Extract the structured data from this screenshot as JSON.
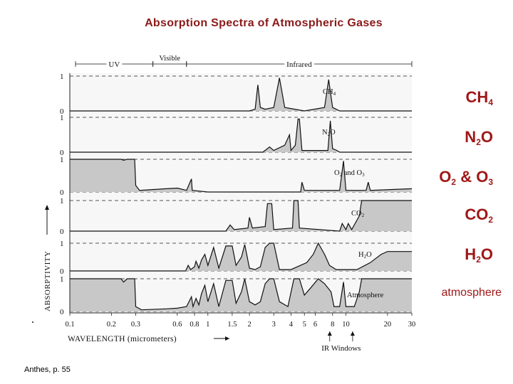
{
  "slide": {
    "title": "Absorption Spectra of Atmospheric Gases",
    "credit": "Anthes, p. 55"
  },
  "legend_labels": [
    {
      "base": "CH",
      "sub": "4",
      "tail": ""
    },
    {
      "base": "N",
      "sub": "2",
      "tail": "O"
    },
    {
      "base": "O",
      "sub": "2",
      "tail": " & O",
      "sub2": "3"
    },
    {
      "base": "CO",
      "sub": "2",
      "tail": ""
    },
    {
      "base": "H",
      "sub": "2",
      "tail": "O"
    },
    {
      "base": "atmosphere",
      "sub": "",
      "tail": ""
    }
  ],
  "colors": {
    "title": "#8b1a1a",
    "labels": "#a01818",
    "fill": "#c8c8c8",
    "line": "#111111"
  },
  "chart_data": {
    "type": "area",
    "xscale": "log",
    "xlabel": "WAVELENGTH (micrometers)",
    "ylabel": "ABSORPTIVITY",
    "xlim": [
      0.1,
      30
    ],
    "xticks": [
      "0.1",
      "0.2",
      "0.3",
      "0.6",
      "0.8",
      "1",
      "1.5",
      "2",
      "3",
      "4",
      "5",
      "6",
      "8",
      "10",
      "20",
      "30"
    ],
    "xtick_values": [
      0.1,
      0.2,
      0.3,
      0.6,
      0.8,
      1,
      1.5,
      2,
      3,
      4,
      5,
      6,
      8,
      10,
      20,
      30
    ],
    "regions": [
      {
        "label": "UV",
        "from": 0.1,
        "to": 0.4
      },
      {
        "label": "Visible",
        "from": 0.4,
        "to": 0.7
      },
      {
        "label": "Infrared",
        "from": 0.7,
        "to": 30
      }
    ],
    "annotation": "IR Windows",
    "ir_window_range": [
      8,
      12
    ],
    "panels": [
      {
        "name": "CH4",
        "label": "CH",
        "label_sub": "4",
        "ymin_label": "0",
        "ymax_label": "1",
        "points": [
          [
            0.1,
            0
          ],
          [
            2.0,
            0
          ],
          [
            2.2,
            0.05
          ],
          [
            2.3,
            0.75
          ],
          [
            2.4,
            0.1
          ],
          [
            2.6,
            0.05
          ],
          [
            3.0,
            0.1
          ],
          [
            3.3,
            0.95
          ],
          [
            3.6,
            0.1
          ],
          [
            5,
            0
          ],
          [
            7.0,
            0.1
          ],
          [
            7.5,
            0.9
          ],
          [
            8.0,
            0.1
          ],
          [
            9,
            0
          ],
          [
            30,
            0
          ]
        ]
      },
      {
        "name": "N2O",
        "label": "N",
        "label_sub": "2",
        "label_tail": "O",
        "ymin_label": "0",
        "ymax_label": "1",
        "points": [
          [
            0.1,
            0
          ],
          [
            2.5,
            0
          ],
          [
            2.8,
            0.15
          ],
          [
            3.0,
            0.05
          ],
          [
            3.6,
            0.2
          ],
          [
            3.9,
            0.5
          ],
          [
            4.0,
            0.05
          ],
          [
            4.3,
            0.2
          ],
          [
            4.5,
            0.95
          ],
          [
            4.6,
            0.95
          ],
          [
            4.8,
            0.05
          ],
          [
            7.4,
            0.05
          ],
          [
            7.7,
            0.9
          ],
          [
            8.0,
            0.1
          ],
          [
            8.6,
            0.05
          ],
          [
            9,
            0
          ],
          [
            30,
            0
          ]
        ]
      },
      {
        "name": "O2 and O3",
        "label": "O",
        "label_sub": "2",
        "label_tail": " and O",
        "label_sub2": "3",
        "ymin_label": "0",
        "ymax_label": "1",
        "points": [
          [
            0.1,
            1
          ],
          [
            0.235,
            1
          ],
          [
            0.245,
            0.97
          ],
          [
            0.26,
            1
          ],
          [
            0.295,
            1
          ],
          [
            0.3,
            0.2
          ],
          [
            0.32,
            0.05
          ],
          [
            0.5,
            0.1
          ],
          [
            0.6,
            0.12
          ],
          [
            0.7,
            0.05
          ],
          [
            0.76,
            0.4
          ],
          [
            0.77,
            0.05
          ],
          [
            1,
            0
          ],
          [
            4.7,
            0
          ],
          [
            4.8,
            0.3
          ],
          [
            5,
            0.05
          ],
          [
            9.0,
            0.05
          ],
          [
            9.6,
            0.95
          ],
          [
            10,
            0.05
          ],
          [
            14,
            0.05
          ],
          [
            14.5,
            0.3
          ],
          [
            15,
            0.05
          ],
          [
            30,
            0.1
          ]
        ]
      },
      {
        "name": "CO2",
        "label": "CO",
        "label_sub": "2",
        "ymin_label": "0",
        "ymax_label": "1",
        "points": [
          [
            0.1,
            0
          ],
          [
            1.35,
            0
          ],
          [
            1.45,
            0.2
          ],
          [
            1.55,
            0.05
          ],
          [
            1.95,
            0.1
          ],
          [
            2.0,
            0.45
          ],
          [
            2.1,
            0.1
          ],
          [
            2.6,
            0.15
          ],
          [
            2.7,
            0.9
          ],
          [
            2.9,
            0.9
          ],
          [
            3.0,
            0.05
          ],
          [
            4.1,
            0.1
          ],
          [
            4.2,
            1
          ],
          [
            4.5,
            1
          ],
          [
            4.6,
            0.1
          ],
          [
            9,
            0
          ],
          [
            9.4,
            0.25
          ],
          [
            10.0,
            0.05
          ],
          [
            10.4,
            0.25
          ],
          [
            11,
            0.05
          ],
          [
            12.5,
            0.5
          ],
          [
            13,
            1
          ],
          [
            30,
            1
          ]
        ]
      },
      {
        "name": "H2O",
        "label": "H",
        "label_sub": "2",
        "label_tail": "O",
        "ymin_label": "0",
        "ymax_label": "1",
        "points": [
          [
            0.1,
            0
          ],
          [
            0.69,
            0
          ],
          [
            0.72,
            0.2
          ],
          [
            0.75,
            0.05
          ],
          [
            0.8,
            0.15
          ],
          [
            0.82,
            0.35
          ],
          [
            0.86,
            0.1
          ],
          [
            0.9,
            0.4
          ],
          [
            0.95,
            0.6
          ],
          [
            1.0,
            0.2
          ],
          [
            1.1,
            0.85
          ],
          [
            1.2,
            0.1
          ],
          [
            1.35,
            0.9
          ],
          [
            1.5,
            0.9
          ],
          [
            1.6,
            0.2
          ],
          [
            1.75,
            0.5
          ],
          [
            1.85,
            0.95
          ],
          [
            2.0,
            0.1
          ],
          [
            2.2,
            0.05
          ],
          [
            2.4,
            0.15
          ],
          [
            2.6,
            0.85
          ],
          [
            2.8,
            1
          ],
          [
            3.0,
            1
          ],
          [
            3.3,
            0.05
          ],
          [
            4.0,
            0.05
          ],
          [
            5.2,
            0.3
          ],
          [
            5.8,
            0.6
          ],
          [
            6.3,
            1
          ],
          [
            7.0,
            0.6
          ],
          [
            7.6,
            0.2
          ],
          [
            8.5,
            0.05
          ],
          [
            12,
            0.05
          ],
          [
            15,
            0.3
          ],
          [
            18,
            0.6
          ],
          [
            20,
            0.7
          ],
          [
            30,
            0.7
          ]
        ]
      },
      {
        "name": "Atmosphere",
        "label": "Atmosphere",
        "ymin_label": "0",
        "ymax_label": "1",
        "points": [
          [
            0.1,
            1
          ],
          [
            0.235,
            1
          ],
          [
            0.245,
            0.9
          ],
          [
            0.26,
            1
          ],
          [
            0.295,
            1
          ],
          [
            0.3,
            0.15
          ],
          [
            0.33,
            0.05
          ],
          [
            0.5,
            0.08
          ],
          [
            0.6,
            0.1
          ],
          [
            0.7,
            0.15
          ],
          [
            0.76,
            0.45
          ],
          [
            0.78,
            0.15
          ],
          [
            0.82,
            0.4
          ],
          [
            0.86,
            0.2
          ],
          [
            0.9,
            0.55
          ],
          [
            0.95,
            0.8
          ],
          [
            1.0,
            0.3
          ],
          [
            1.1,
            0.85
          ],
          [
            1.2,
            0.15
          ],
          [
            1.35,
            0.95
          ],
          [
            1.5,
            0.95
          ],
          [
            1.6,
            0.25
          ],
          [
            1.75,
            0.6
          ],
          [
            1.85,
            1
          ],
          [
            2.0,
            0.3
          ],
          [
            2.2,
            0.2
          ],
          [
            2.4,
            0.3
          ],
          [
            2.6,
            0.85
          ],
          [
            2.8,
            1
          ],
          [
            3.0,
            1
          ],
          [
            3.3,
            0.3
          ],
          [
            3.8,
            0.15
          ],
          [
            4.2,
            1
          ],
          [
            4.6,
            1
          ],
          [
            5.0,
            0.5
          ],
          [
            5.5,
            0.7
          ],
          [
            6.3,
            1
          ],
          [
            7.0,
            0.85
          ],
          [
            7.8,
            0.6
          ],
          [
            8.2,
            0.15
          ],
          [
            9.0,
            0.15
          ],
          [
            9.6,
            0.9
          ],
          [
            10.0,
            0.15
          ],
          [
            11.5,
            0.15
          ],
          [
            12.5,
            0.6
          ],
          [
            13,
            1
          ],
          [
            30,
            1
          ]
        ]
      }
    ]
  }
}
